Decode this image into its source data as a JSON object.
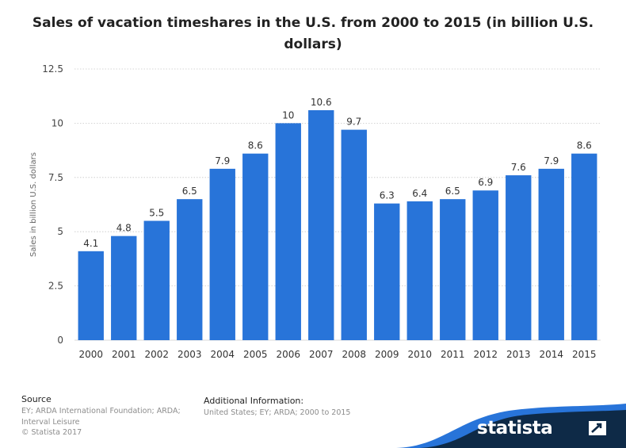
{
  "chart_data": {
    "type": "bar",
    "title": "Sales of vacation timeshares in the U.S. from 2000 to 2015 (in billion U.S. dollars)",
    "ylabel": "Sales in billion U.S. dollars",
    "xlabel": "",
    "categories": [
      "2000",
      "2001",
      "2002",
      "2003",
      "2004",
      "2005",
      "2006",
      "2007",
      "2008",
      "2009",
      "2010",
      "2011",
      "2012",
      "2013",
      "2014",
      "2015"
    ],
    "values": [
      4.1,
      4.8,
      5.5,
      6.5,
      7.9,
      8.6,
      10,
      10.6,
      9.7,
      6.3,
      6.4,
      6.5,
      6.9,
      7.6,
      7.9,
      8.6
    ],
    "value_labels": [
      "4.1",
      "4.8",
      "5.5",
      "6.5",
      "7.9",
      "8.6",
      "10",
      "10.6",
      "9.7",
      "6.3",
      "6.4",
      "6.5",
      "6.9",
      "7.6",
      "7.9",
      "8.6"
    ],
    "ylim": [
      0,
      12.5
    ],
    "yticks": [
      0,
      2.5,
      5,
      7.5,
      10,
      12.5
    ],
    "ytick_labels": [
      "0",
      "2.5",
      "5",
      "7.5",
      "10",
      "12.5"
    ],
    "grid": true,
    "legend": "none",
    "bar_color": "#2874d9"
  },
  "footer": {
    "source_heading": "Source",
    "source_lines": [
      "EY; ARDA International Foundation; ARDA;",
      "Interval Leisure",
      "© Statista 2017"
    ],
    "additional_heading": "Additional Information:",
    "additional_text": "United States; EY; ARDA; 2000 to 2015"
  },
  "brand": {
    "name": "statista",
    "colors": {
      "dark": "#0e2a47",
      "accent": "#2874d9"
    }
  }
}
